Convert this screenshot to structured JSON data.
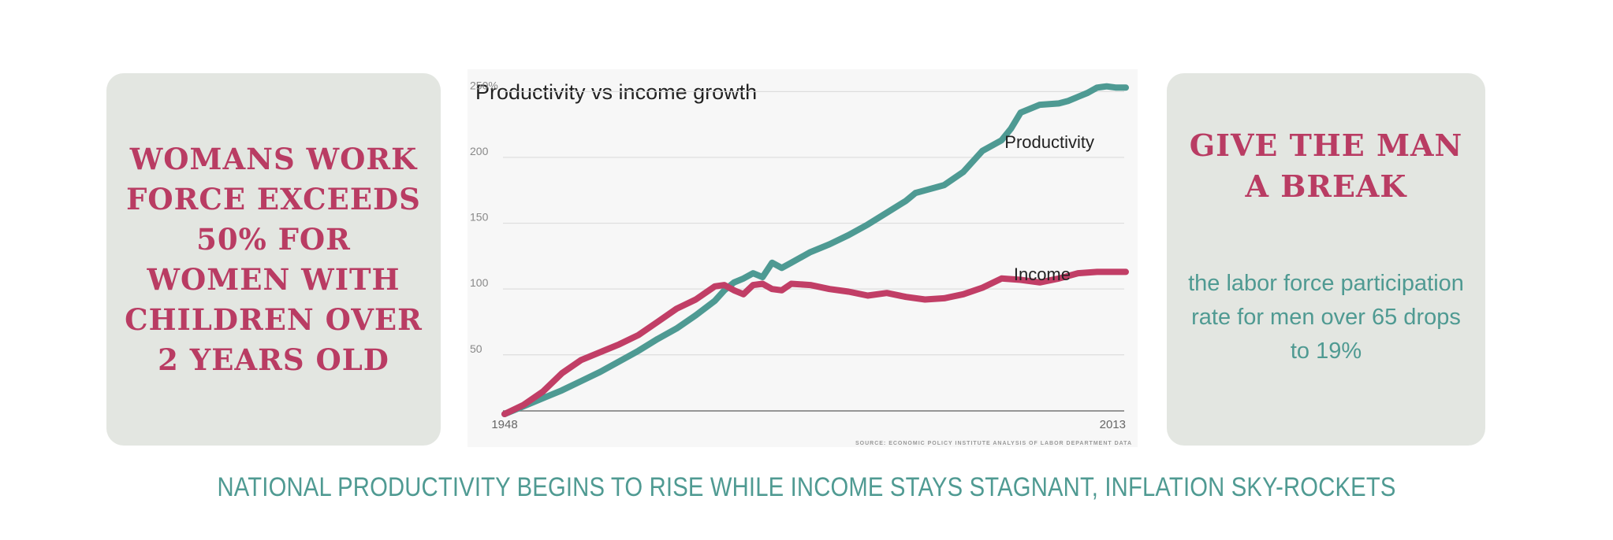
{
  "left_card": {
    "heading": "WOMANS WORK FORCE EXCEEDS 50% FOR WOMEN WITH CHILDREN OVER 2 YEARS OLD"
  },
  "right_card": {
    "heading": "GIVE THE MAN A BREAK",
    "body": "the labor force participation rate for men over 65 drops to 19%"
  },
  "caption": "NATIONAL PRODUCTIVITY BEGINS TO RISE WHILE INCOME STAYS STAGNANT, INFLATION SKY-ROCKETS",
  "colors": {
    "heading": "#b93c63",
    "teal_text": "#4f9a92",
    "productivity": "#4e9a93",
    "income": "#c13e66",
    "card_bg": "#e3e6e1"
  },
  "chart_data": {
    "type": "line",
    "title": "Productivity vs income growth",
    "source": "SOURCE: ECONOMIC POLICY INSTITUTE ANALYSIS OF LABOR DEPARTMENT DATA",
    "xlabel": "",
    "ylabel": "",
    "x_range": [
      1948,
      2013
    ],
    "ylim": [
      5,
      255
    ],
    "y_ticks": [
      {
        "value": 250,
        "label": "250%"
      },
      {
        "value": 200,
        "label": "200"
      },
      {
        "value": 150,
        "label": "150"
      },
      {
        "value": 100,
        "label": "100"
      },
      {
        "value": 50,
        "label": "50"
      }
    ],
    "x_tick_labels": [
      {
        "value": 1948,
        "label": "1948"
      },
      {
        "value": 2013,
        "label": "2013"
      }
    ],
    "series": [
      {
        "name": "Productivity",
        "label": "Productivity",
        "color": "#4e9a93",
        "x": [
          1948,
          1950,
          1952,
          1954,
          1956,
          1958,
          1960,
          1962,
          1964,
          1966,
          1968,
          1970,
          1971,
          1972,
          1973,
          1974,
          1975,
          1976,
          1977,
          1978,
          1980,
          1982,
          1984,
          1986,
          1988,
          1990,
          1991,
          1992,
          1994,
          1996,
          1998,
          2000,
          2001,
          2002,
          2003,
          2004,
          2006,
          2007,
          2008,
          2009,
          2010,
          2011,
          2012,
          2013
        ],
        "values": [
          5,
          11,
          17,
          23,
          30,
          37,
          45,
          53,
          62,
          70,
          80,
          91,
          99,
          105,
          108,
          112,
          109,
          120,
          116,
          120,
          128,
          134,
          141,
          149,
          158,
          167,
          173,
          175,
          179,
          189,
          205,
          213,
          222,
          234,
          237,
          240,
          241,
          243,
          246,
          249,
          253,
          254,
          253,
          253
        ]
      },
      {
        "name": "Income",
        "label": "Income",
        "color": "#c13e66",
        "x": [
          1948,
          1950,
          1952,
          1954,
          1956,
          1958,
          1960,
          1962,
          1964,
          1966,
          1968,
          1970,
          1971,
          1972,
          1973,
          1974,
          1975,
          1976,
          1977,
          1978,
          1980,
          1982,
          1984,
          1986,
          1988,
          1990,
          1992,
          1994,
          1996,
          1998,
          2000,
          2002,
          2004,
          2006,
          2008,
          2010,
          2012,
          2013
        ],
        "values": [
          5,
          12,
          22,
          36,
          46,
          52,
          58,
          65,
          75,
          85,
          92,
          102,
          103,
          99,
          96,
          103,
          104,
          100,
          99,
          104,
          103,
          100,
          98,
          95,
          97,
          94,
          92,
          93,
          96,
          101,
          108,
          107,
          105,
          108,
          112,
          113,
          113,
          113
        ]
      }
    ]
  }
}
